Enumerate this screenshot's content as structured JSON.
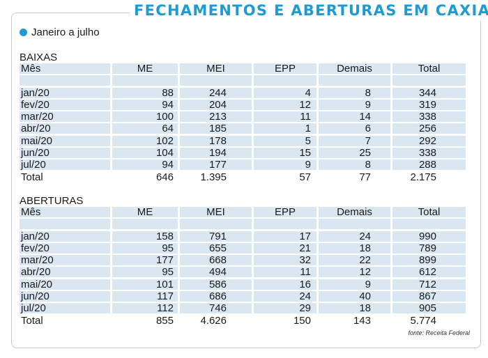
{
  "title": "FECHAMENTOS E ABERTURAS EM CAXIAS",
  "subtitle": "Janeiro a julho",
  "source": "fonte: Receita Federal",
  "colors": {
    "accent": "#1d9bd2",
    "row_fill": "#dbe7f0"
  },
  "chart_data": {
    "type": "table",
    "columns": [
      "Mês",
      "ME",
      "MEI",
      "EPP",
      "Demais",
      "Total"
    ],
    "tables": [
      {
        "label": "BAIXAS",
        "rows": [
          [
            "jan/20",
            "88",
            "244",
            "4",
            "8",
            "344"
          ],
          [
            "fev/20",
            "94",
            "204",
            "12",
            "9",
            "319"
          ],
          [
            "mar/20",
            "100",
            "213",
            "11",
            "14",
            "338"
          ],
          [
            "abr/20",
            "64",
            "185",
            "1",
            "6",
            "256"
          ],
          [
            "mai/20",
            "102",
            "178",
            "5",
            "7",
            "292"
          ],
          [
            "jun/20",
            "104",
            "194",
            "15",
            "25",
            "338"
          ],
          [
            "jul/20",
            "94",
            "177",
            "9",
            "8",
            "288"
          ]
        ],
        "total": [
          "Total",
          "646",
          "1.395",
          "57",
          "77",
          "2.175"
        ]
      },
      {
        "label": "ABERTURAS",
        "rows": [
          [
            "jan/20",
            "158",
            "791",
            "17",
            "24",
            "990"
          ],
          [
            "fev/20",
            "95",
            "655",
            "21",
            "18",
            "789"
          ],
          [
            "mar/20",
            "177",
            "668",
            "32",
            "22",
            "899"
          ],
          [
            "abr/20",
            "95",
            "494",
            "11",
            "12",
            "612"
          ],
          [
            "mai/20",
            "101",
            "586",
            "16",
            "9",
            "712"
          ],
          [
            "jun/20",
            "117",
            "686",
            "24",
            "40",
            "867"
          ],
          [
            "jul/20",
            "112",
            "746",
            "29",
            "18",
            "905"
          ]
        ],
        "total": [
          "Total",
          "855",
          "4.626",
          "150",
          "143",
          "5.774"
        ]
      }
    ]
  }
}
